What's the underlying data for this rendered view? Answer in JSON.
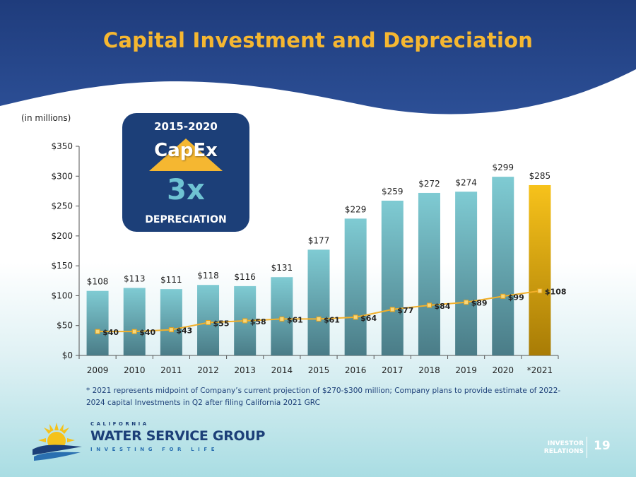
{
  "slide": {
    "title": "Capital Investment and Depreciation",
    "units": "(in millions)",
    "footnote": "* 2021 represents midpoint of Company’s current projection of $270-$300 million; Company plans to provide estimate of 2022-2024 capital Investments in Q2 after filing California 2021 GRC",
    "page_number": "19",
    "investor_relations_line1": "INVESTOR",
    "investor_relations_line2": "RELATIONS"
  },
  "callout": {
    "years": "2015-2020",
    "label": "CapEx",
    "multiple": "3x",
    "sub": "DEPRECIATION"
  },
  "logo": {
    "state": "CALIFORNIA",
    "name": "WATER SERVICE GROUP",
    "tagline": "INVESTING FOR LIFE"
  },
  "colors": {
    "header_blue": "#1f3c7c",
    "title_gold": "#f5b731",
    "bar_teal_top": "#7fcbd3",
    "bar_teal_bottom": "#4a7c87",
    "bar_gold_top": "#f7c21b",
    "bar_gold_bottom": "#a87c06",
    "line_gold": "#f2b02a"
  },
  "chart_data": {
    "type": "bar",
    "categories": [
      "2009",
      "2010",
      "2011",
      "2012",
      "2013",
      "2014",
      "2015",
      "2016",
      "2017",
      "2018",
      "2019",
      "2020",
      "*2021"
    ],
    "series": [
      {
        "type": "bar",
        "values": [
          108,
          113,
          111,
          118,
          116,
          131,
          177,
          229,
          259,
          272,
          274,
          299,
          285
        ],
        "labels": [
          "$108",
          "$113",
          "$111",
          "$118",
          "$116",
          "$131",
          "$177",
          "$229",
          "$259",
          "$272",
          "$274",
          "$299",
          "$285"
        ],
        "highlight_last": true
      },
      {
        "type": "line",
        "values": [
          40,
          40,
          43,
          55,
          58,
          61,
          61,
          64,
          77,
          84,
          89,
          99,
          108
        ],
        "labels": [
          "$40",
          "$40",
          "$43",
          "$55",
          "$58",
          "$61",
          "$61",
          "$64",
          "$77",
          "$84",
          "$89",
          "$99",
          "$108"
        ]
      }
    ],
    "ylim": [
      0,
      350
    ],
    "yticks": [
      0,
      50,
      100,
      150,
      200,
      250,
      300,
      350
    ],
    "ytick_labels": [
      "$0",
      "$50",
      "$100",
      "$150",
      "$200",
      "$250",
      "$300",
      "$350"
    ],
    "grid": false,
    "legend": "none"
  }
}
